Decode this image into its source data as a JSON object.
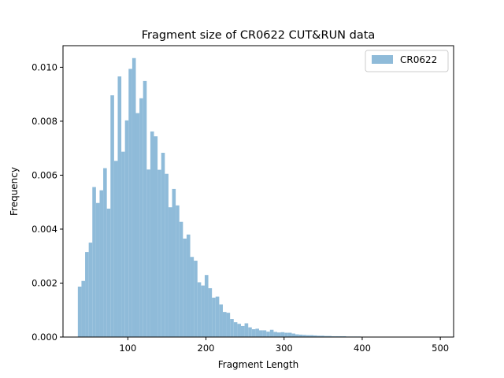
{
  "chart_data": {
    "type": "bar",
    "title": "Fragment size of CR0622 CUT&RUN data",
    "xlabel": "Fragment Length",
    "ylabel": "Frequency",
    "xlim": [
      17,
      517
    ],
    "ylim": [
      0,
      0.0108
    ],
    "xticks": [
      100,
      200,
      300,
      400,
      500
    ],
    "yticks": [
      0.0,
      0.002,
      0.004,
      0.006,
      0.008,
      0.01
    ],
    "ytick_labels": [
      "0.000",
      "0.002",
      "0.004",
      "0.006",
      "0.008",
      "0.010"
    ],
    "bin_start": 36,
    "bin_width": 4.64,
    "grid": false,
    "legend": {
      "position": "top-right",
      "entries": [
        {
          "name": "CR0622",
          "color": "#8fbbd9"
        }
      ]
    },
    "series": [
      {
        "name": "CR0622",
        "color": "#8fbbd9",
        "values": [
          0.00187,
          0.00208,
          0.00315,
          0.0035,
          0.00556,
          0.00497,
          0.00544,
          0.00626,
          0.00476,
          0.00896,
          0.00653,
          0.00966,
          0.00687,
          0.00803,
          0.00994,
          0.01034,
          0.0083,
          0.00885,
          0.00949,
          0.00621,
          0.00762,
          0.00744,
          0.0062,
          0.00683,
          0.00605,
          0.00481,
          0.00549,
          0.00488,
          0.00427,
          0.00365,
          0.0038,
          0.00297,
          0.00283,
          0.00203,
          0.00191,
          0.0023,
          0.00181,
          0.00146,
          0.0015,
          0.00121,
          0.00093,
          0.0009,
          0.00067,
          0.00055,
          0.00049,
          0.00041,
          0.00051,
          0.00036,
          0.00029,
          0.00031,
          0.00025,
          0.00025,
          0.0002,
          0.00027,
          0.00019,
          0.00017,
          0.00018,
          0.00016,
          0.00016,
          0.00013,
          0.0001,
          9e-05,
          8e-05,
          7e-05,
          7e-05,
          6e-05,
          5e-05,
          5e-05,
          4e-05,
          4e-05,
          3e-05,
          3e-05,
          3e-05,
          3e-05,
          2e-05,
          2e-05,
          2e-05,
          2e-05,
          1e-05,
          1e-05,
          1e-05,
          1e-05,
          1e-05,
          1e-05,
          1e-05,
          1e-05,
          1e-05,
          1e-05,
          1e-05,
          1e-05,
          1e-05,
          1e-05,
          1e-05,
          1e-05,
          1e-05,
          1e-05,
          1e-05,
          1e-05,
          1e-05,
          1e-05,
          1e-05,
          1e-05,
          1e-05,
          1e-05
        ]
      }
    ]
  }
}
